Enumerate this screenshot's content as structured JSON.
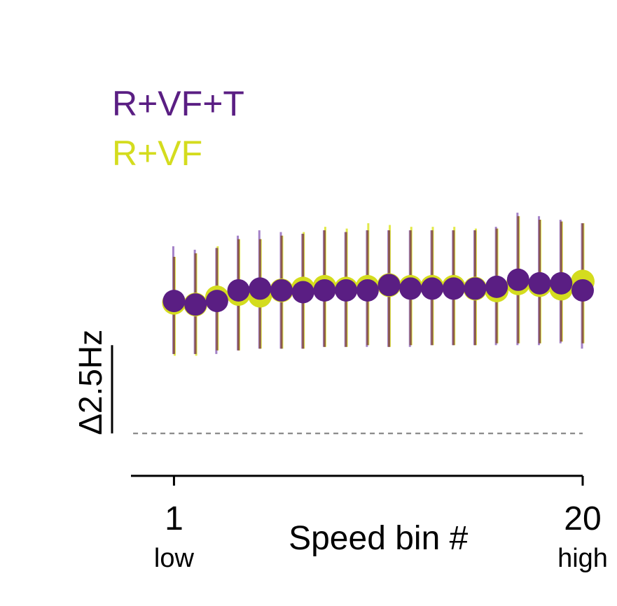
{
  "chart_data": {
    "type": "scatter",
    "x": [
      1,
      2,
      3,
      4,
      5,
      6,
      7,
      8,
      9,
      10,
      11,
      12,
      13,
      14,
      15,
      16,
      17,
      18,
      19,
      20
    ],
    "series": [
      {
        "name": "R+VF",
        "color": "#d4dc1e",
        "y": [
          7.4,
          7.3,
          7.7,
          7.9,
          7.8,
          8.1,
          8.2,
          8.3,
          8.2,
          8.3,
          8.4,
          8.3,
          8.3,
          8.3,
          8.2,
          8.1,
          8.5,
          8.4,
          8.2,
          8.6
        ],
        "lower": [
          4.4,
          4.4,
          4.7,
          4.7,
          4.8,
          4.8,
          4.8,
          4.9,
          4.9,
          5.0,
          4.9,
          5.0,
          5.0,
          5.0,
          5.0,
          5.1,
          5.1,
          5.1,
          5.2,
          5.1
        ],
        "upper": [
          10.0,
          10.2,
          10.6,
          11.0,
          11.0,
          11.2,
          11.4,
          11.7,
          11.6,
          11.9,
          11.8,
          11.7,
          11.7,
          11.7,
          11.6,
          11.6,
          12.3,
          12.1,
          12.0,
          11.9
        ]
      },
      {
        "name": "R+VF+T",
        "color": "#5a1e83",
        "y": [
          7.5,
          7.3,
          7.5,
          8.1,
          8.2,
          8.1,
          8.0,
          8.1,
          8.1,
          8.1,
          8.4,
          8.2,
          8.2,
          8.2,
          8.2,
          8.3,
          8.7,
          8.5,
          8.5,
          8.1
        ],
        "lower": [
          4.5,
          4.5,
          4.5,
          4.7,
          4.8,
          4.8,
          4.8,
          4.9,
          4.9,
          4.9,
          4.9,
          4.9,
          5.0,
          5.0,
          5.0,
          5.0,
          5.0,
          5.0,
          5.1,
          4.8
        ],
        "upper": [
          10.6,
          10.4,
          10.5,
          11.2,
          11.5,
          11.4,
          11.3,
          11.5,
          11.4,
          11.5,
          11.5,
          11.5,
          11.5,
          11.5,
          11.5,
          11.7,
          12.5,
          12.3,
          12.1,
          11.9
        ]
      }
    ],
    "x_ticks": [
      {
        "value": 1,
        "label": "1",
        "sublabel": "low"
      },
      {
        "value": 20,
        "label": "20",
        "sublabel": "high"
      }
    ],
    "xlabel": "Speed bin #",
    "scale_bar": {
      "label": "Δ2.5Hz",
      "length": 2.5
    },
    "baseline": 0,
    "xlim": [
      -1,
      20
    ],
    "ylim": [
      -2.4,
      18.2
    ],
    "error_bar_color": "#8b5a4e",
    "legend_position": "top-left",
    "grid": false
  }
}
